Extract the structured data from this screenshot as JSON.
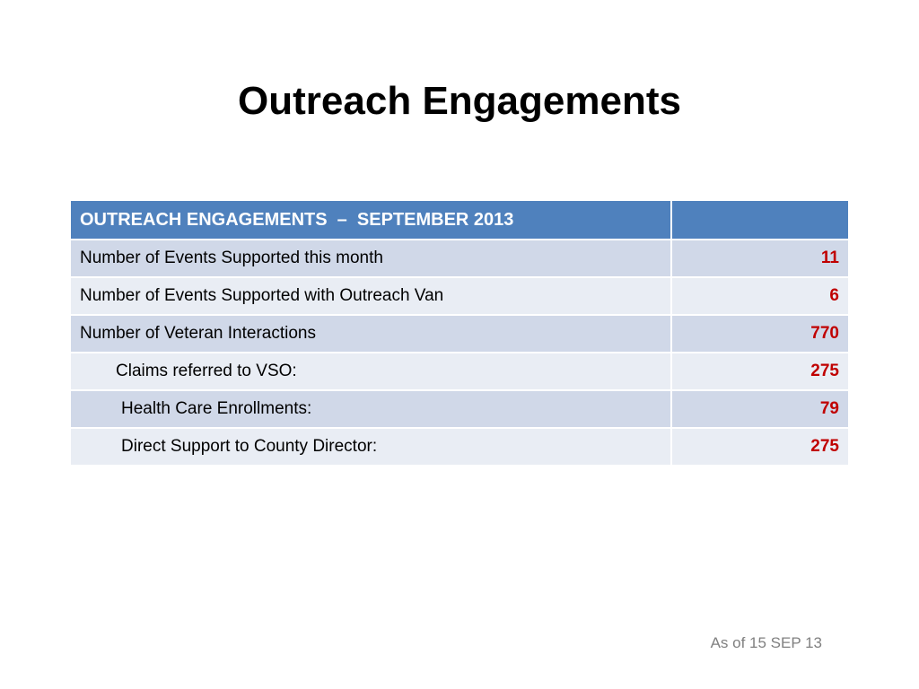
{
  "slide": {
    "title": "Outreach Engagements",
    "footnote": "As of 15 SEP 13"
  },
  "table": {
    "header": "OUTREACH ENGAGEMENTS  –  SEPTEMBER 2013",
    "header_value": "",
    "rows": [
      {
        "label": "Number of Events Supported this month",
        "value": "11"
      },
      {
        "label": "Number of Events Supported with Outreach Van",
        "value": "6"
      },
      {
        "label": "Number of Veteran Interactions",
        "value": "770"
      },
      {
        "label": "Claims referred to VSO:",
        "value": "275"
      },
      {
        "label": "Health Care Enrollments:",
        "value": "79"
      },
      {
        "label": "Direct Support to County Director:",
        "value": "275"
      }
    ]
  },
  "colors": {
    "header_bg": "#4f81bd",
    "row_odd_bg": "#d0d8e8",
    "row_even_bg": "#e9edf4",
    "value_text": "#c00000",
    "footnote_text": "#808080"
  }
}
